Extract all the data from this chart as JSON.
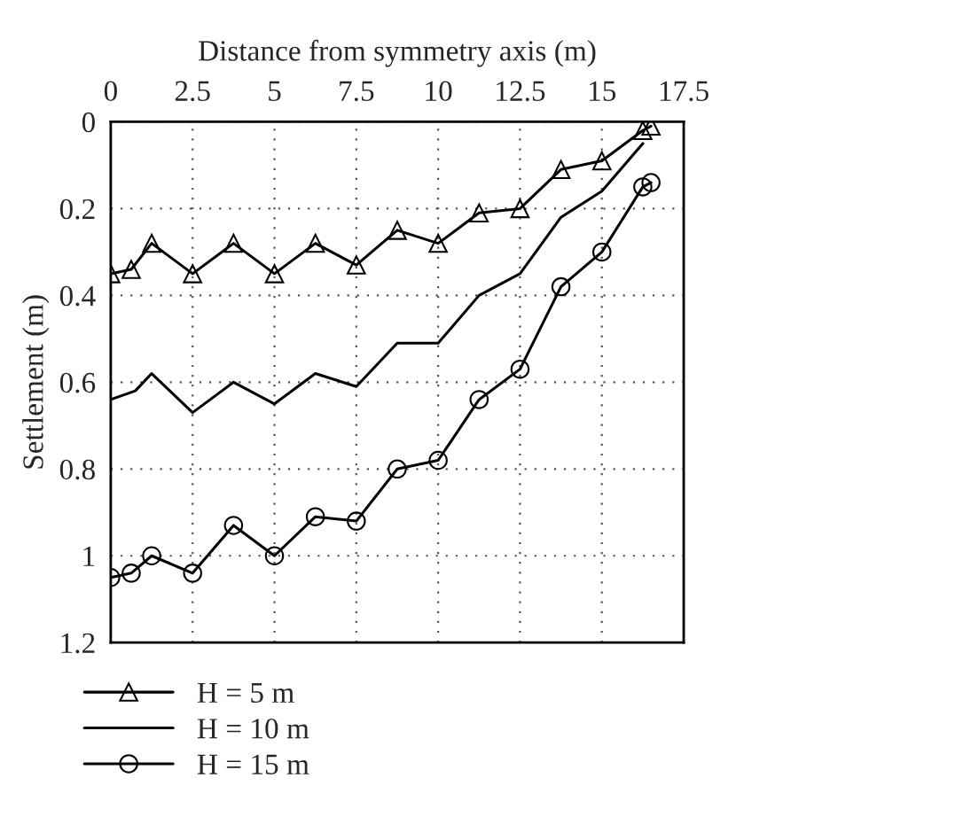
{
  "chart_data": {
    "type": "line",
    "xlabel": "Distance from symmetry axis (m)",
    "ylabel": "Settlement (m)",
    "xlim": [
      0,
      17.5
    ],
    "xticks": [
      0,
      2.5,
      5,
      7.5,
      10,
      12.5,
      15,
      17.5
    ],
    "ylim": [
      1.2,
      0
    ],
    "yticks": [
      0,
      0.2,
      0.4,
      0.6,
      0.8,
      1,
      1.2
    ],
    "grid": true,
    "legend": "bottom left",
    "line_style": "solid",
    "series": [
      {
        "name": "H = 5 m",
        "color": "#000000",
        "marker": "triangle",
        "x": [
          0,
          0.625,
          1.25,
          2.5,
          3.75,
          5,
          6.25,
          7.5,
          8.75,
          10,
          11.25,
          12.5,
          13.75,
          15,
          16.25,
          16.5
        ],
        "values": [
          0.35,
          0.34,
          0.28,
          0.35,
          0.28,
          0.35,
          0.28,
          0.33,
          0.25,
          0.28,
          0.21,
          0.2,
          0.11,
          0.09,
          0.02,
          0.01
        ]
      },
      {
        "name": "H = 10 m",
        "color": "#000000",
        "marker": "none",
        "x": [
          0,
          0.75,
          1.25,
          2.5,
          3.75,
          5,
          6.25,
          7.5,
          8.75,
          10,
          11.25,
          12.5,
          13.75,
          15,
          16.25
        ],
        "values": [
          0.64,
          0.62,
          0.58,
          0.67,
          0.6,
          0.65,
          0.58,
          0.61,
          0.51,
          0.51,
          0.4,
          0.35,
          0.22,
          0.16,
          0.05
        ]
      },
      {
        "name": "H = 15 m",
        "color": "#000000",
        "marker": "circle",
        "x": [
          0,
          0.625,
          1.25,
          2.5,
          3.75,
          5,
          6.25,
          7.5,
          8.75,
          10,
          11.25,
          12.5,
          13.75,
          15,
          16.25,
          16.5
        ],
        "values": [
          1.05,
          1.04,
          1.0,
          1.04,
          0.93,
          1.0,
          0.91,
          0.92,
          0.8,
          0.78,
          0.64,
          0.57,
          0.38,
          0.3,
          0.15,
          0.14
        ]
      }
    ]
  }
}
